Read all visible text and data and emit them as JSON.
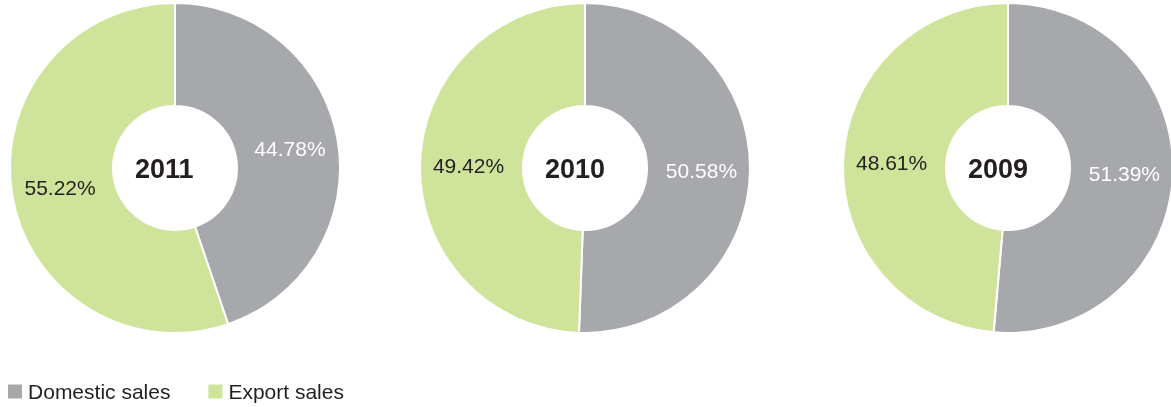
{
  "chart_data": [
    {
      "type": "donut",
      "title": "2011",
      "categories": [
        "Domestic sales",
        "Export sales"
      ],
      "values": [
        44.78,
        55.22
      ],
      "colors": [
        "#a7a8ab",
        "#d0e39a"
      ],
      "value_labels": [
        "44.78%",
        "55.22%"
      ],
      "legend": "bottom"
    },
    {
      "type": "donut",
      "title": "2010",
      "categories": [
        null,
        null
      ],
      "values": [
        50.58,
        49.42
      ],
      "colors": [
        "#a7a8ab",
        "#d0e39a"
      ],
      "value_labels": [
        "50.58%",
        "49.42%"
      ]
    },
    {
      "type": "donut",
      "title": "2009",
      "categories": [
        null,
        null
      ],
      "values": [
        51.39,
        48.61
      ],
      "colors": [
        "#a7a8ab",
        "#d0e39a"
      ],
      "value_labels": [
        "51.39%",
        "48.61%"
      ]
    }
  ]
}
